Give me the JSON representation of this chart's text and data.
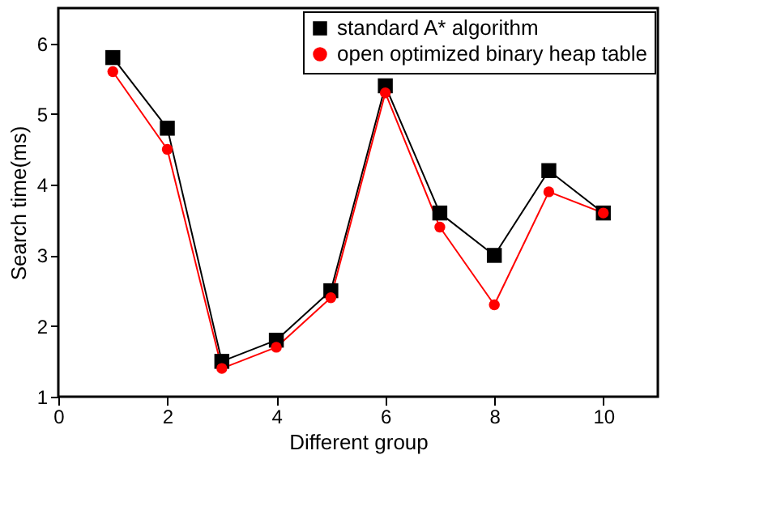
{
  "chart_data": {
    "type": "line",
    "xlabel": "Different group",
    "ylabel": "Search time(ms)",
    "x": [
      1,
      2,
      3,
      4,
      5,
      6,
      7,
      8,
      9,
      10
    ],
    "series": [
      {
        "name": "standard A* algorithm",
        "color": "#000000",
        "marker": "square",
        "values": [
          5.8,
          4.8,
          1.5,
          1.8,
          2.5,
          5.4,
          3.6,
          3.0,
          4.2,
          3.6
        ]
      },
      {
        "name": "open optimized binary heap table",
        "color": "#ff0000",
        "marker": "circle",
        "values": [
          5.6,
          4.5,
          1.4,
          1.7,
          2.4,
          5.3,
          3.4,
          2.3,
          3.9,
          3.6
        ]
      }
    ],
    "xlim": [
      0,
      11
    ],
    "xticks": [
      0,
      2,
      4,
      6,
      8,
      10
    ],
    "ylim": [
      1,
      6.5
    ],
    "yticks": [
      1,
      2,
      3,
      4,
      5,
      6
    ],
    "grid": false,
    "legend": "top right",
    "line_style": "solid"
  }
}
